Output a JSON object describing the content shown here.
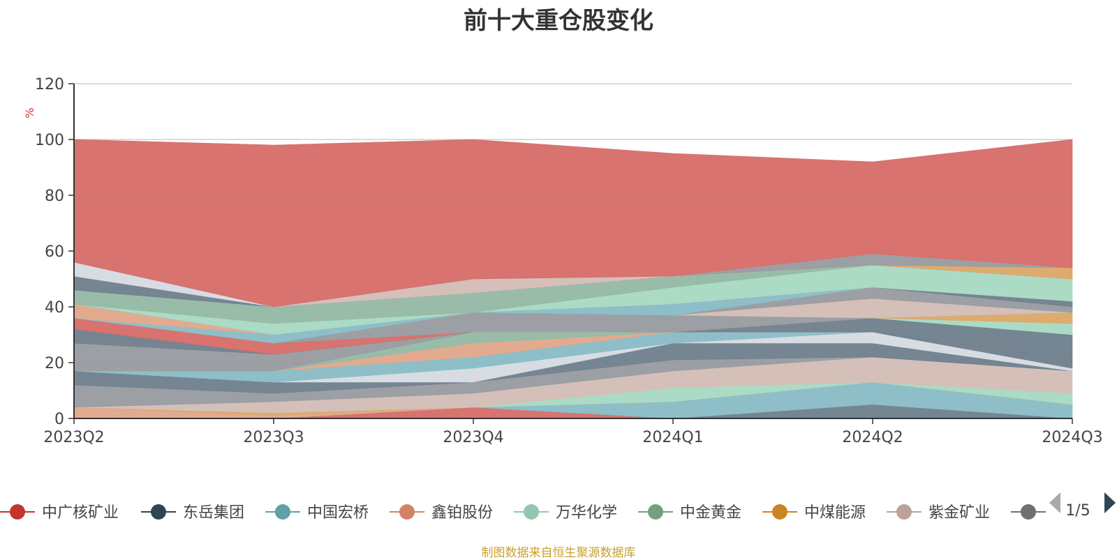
{
  "chart_data": {
    "type": "area",
    "title": "前十大重仓股变化",
    "ylabel": "%",
    "ylim": [
      0,
      120
    ],
    "yticks": [
      0,
      20,
      40,
      60,
      80,
      100,
      120
    ],
    "grid": true,
    "legend_position": "bottom",
    "categories": [
      "2023Q2",
      "2023Q3",
      "2023Q4",
      "2024Q1",
      "2024Q2",
      "2024Q3"
    ],
    "layers": [
      {
        "color": "#6e7e8c",
        "lower": [
          0,
          0,
          0,
          0,
          0,
          0
        ],
        "upper": [
          0,
          0,
          0,
          0,
          5,
          0
        ]
      },
      {
        "color": "#d66b68",
        "lower": [
          0,
          0,
          0,
          0,
          5,
          0
        ],
        "upper": [
          0,
          0,
          4,
          0,
          5,
          0
        ]
      },
      {
        "color": "#88bcc6",
        "lower": [
          0,
          0,
          4,
          0,
          5,
          0
        ],
        "upper": [
          0,
          0,
          4,
          6,
          13,
          5
        ]
      },
      {
        "color": "#e0a78a",
        "lower": [
          0,
          0,
          4,
          6,
          13,
          5
        ],
        "upper": [
          4,
          1,
          4,
          6,
          13,
          5
        ]
      },
      {
        "color": "#dca766",
        "lower": [
          4,
          1,
          4,
          6,
          13,
          5
        ],
        "upper": [
          4,
          2,
          4,
          6,
          13,
          5
        ]
      },
      {
        "color": "#a6d9c2",
        "lower": [
          4,
          2,
          4,
          6,
          13,
          5
        ],
        "upper": [
          4,
          2,
          4,
          11,
          13,
          9
        ]
      },
      {
        "color": "#d2bdb5",
        "lower": [
          4,
          2,
          4,
          11,
          13,
          9
        ],
        "upper": [
          4,
          6,
          9,
          17,
          22,
          17
        ]
      },
      {
        "color": "#979a9f",
        "lower": [
          4,
          6,
          9,
          17,
          22,
          17
        ],
        "upper": [
          12,
          9,
          13,
          21,
          22,
          17
        ]
      },
      {
        "color": "#6e7e8c",
        "lower": [
          12,
          9,
          13,
          21,
          22,
          17
        ],
        "upper": [
          17,
          13,
          13,
          27,
          27,
          17
        ]
      },
      {
        "color": "#d5dae2",
        "lower": [
          17,
          13,
          13,
          27,
          27,
          17
        ],
        "upper": [
          17,
          13,
          18,
          27,
          31,
          18
        ]
      },
      {
        "color": "#88bcc6",
        "lower": [
          17,
          13,
          18,
          27,
          31,
          18
        ],
        "upper": [
          17,
          17,
          22,
          31,
          31,
          18
        ]
      },
      {
        "color": "#e0a78a",
        "lower": [
          17,
          17,
          22,
          31,
          31,
          18
        ],
        "upper": [
          17,
          17,
          27,
          31,
          31,
          18
        ]
      },
      {
        "color": "#94b8a4",
        "lower": [
          17,
          17,
          27,
          31,
          31,
          18
        ],
        "upper": [
          17,
          17,
          31,
          31,
          31,
          18
        ]
      },
      {
        "color": "#979a9f",
        "lower": [
          17,
          17,
          31,
          31,
          31,
          18
        ],
        "upper": [
          27,
          23,
          31,
          31,
          31,
          18
        ]
      },
      {
        "color": "#6e7e8c",
        "lower": [
          27,
          23,
          31,
          31,
          31,
          18
        ],
        "upper": [
          32,
          23,
          31,
          31,
          31,
          21
        ]
      },
      {
        "color": "#d66b68",
        "lower": [
          32,
          23,
          31,
          31,
          31,
          21
        ],
        "upper": [
          36,
          27,
          31,
          31,
          31,
          21
        ]
      },
      {
        "color": "#6e7e8c",
        "lower": [
          36,
          27,
          31,
          31,
          31,
          21
        ],
        "upper": [
          36,
          27,
          31,
          31,
          36,
          30
        ]
      },
      {
        "color": "#a6d9c2",
        "lower": [
          36,
          27,
          31,
          31,
          36,
          30
        ],
        "upper": [
          36,
          27,
          31,
          31,
          36,
          34
        ]
      },
      {
        "color": "#dca766",
        "lower": [
          36,
          27,
          31,
          31,
          36,
          34
        ],
        "upper": [
          36,
          27,
          31,
          31,
          36,
          38
        ]
      },
      {
        "color": "#979a9f",
        "lower": [
          36,
          27,
          31,
          31,
          36,
          38
        ],
        "upper": [
          36,
          27,
          38,
          37,
          36,
          38
        ]
      },
      {
        "color": "#d2bdb5",
        "lower": [
          36,
          27,
          38,
          37,
          36,
          38
        ],
        "upper": [
          36,
          27,
          38,
          37,
          43,
          38
        ]
      },
      {
        "color": "#979a9f",
        "lower": [
          36,
          27,
          38,
          37,
          43,
          38
        ],
        "upper": [
          36,
          27,
          38,
          37,
          47,
          40
        ]
      },
      {
        "color": "#88bcc6",
        "lower": [
          36,
          27,
          38,
          37,
          47,
          40
        ],
        "upper": [
          36,
          30,
          38,
          41,
          47,
          40
        ]
      },
      {
        "color": "#e0a78a",
        "lower": [
          36,
          30,
          38,
          41,
          47,
          40
        ],
        "upper": [
          41,
          30,
          38,
          41,
          47,
          40
        ]
      },
      {
        "color": "#6e7e8c",
        "lower": [
          41,
          30,
          38,
          41,
          47,
          40
        ],
        "upper": [
          41,
          30,
          38,
          41,
          47,
          42
        ]
      },
      {
        "color": "#a6d9c2",
        "lower": [
          41,
          30,
          38,
          41,
          47,
          42
        ],
        "upper": [
          41,
          34,
          38,
          47,
          55,
          50
        ]
      },
      {
        "color": "#94b8a4",
        "lower": [
          41,
          34,
          38,
          47,
          55,
          50
        ],
        "upper": [
          46,
          40,
          45,
          51,
          55,
          50
        ]
      },
      {
        "color": "#6e7e8c",
        "lower": [
          46,
          40,
          45,
          51,
          55,
          50
        ],
        "upper": [
          51,
          40,
          45,
          51,
          55,
          50
        ]
      },
      {
        "color": "#d2bdb5",
        "lower": [
          51,
          40,
          45,
          51,
          55,
          50
        ],
        "upper": [
          51,
          40,
          50,
          51,
          55,
          50
        ]
      },
      {
        "color": "#dca766",
        "lower": [
          51,
          40,
          50,
          51,
          55,
          50
        ],
        "upper": [
          51,
          40,
          50,
          51,
          55,
          54
        ]
      },
      {
        "color": "#979a9f",
        "lower": [
          51,
          40,
          50,
          51,
          55,
          54
        ],
        "upper": [
          51,
          40,
          50,
          51,
          59,
          54
        ]
      },
      {
        "color": "#d5dae2",
        "lower": [
          51,
          40,
          50,
          51,
          59,
          54
        ],
        "upper": [
          56,
          40,
          50,
          51,
          59,
          54
        ]
      },
      {
        "color": "#d66b68",
        "lower": [
          56,
          40,
          50,
          51,
          59,
          54
        ],
        "upper": [
          100,
          98,
          100,
          95,
          92,
          100
        ]
      }
    ],
    "legend": [
      {
        "name": "中广核矿业",
        "color": "#c23531"
      },
      {
        "name": "东岳集团",
        "color": "#2f4554"
      },
      {
        "name": "中国宏桥",
        "color": "#61a0a8"
      },
      {
        "name": "鑫铂股份",
        "color": "#d48265"
      },
      {
        "name": "万华化学",
        "color": "#91c7ae"
      },
      {
        "name": "中金黄金",
        "color": "#749f83"
      },
      {
        "name": "中煤能源",
        "color": "#ca8622"
      },
      {
        "name": "紫金矿业",
        "color": "#bda29a"
      },
      {
        "name": "",
        "color": "#6e7074"
      }
    ],
    "legend_page": "1/5"
  },
  "footer_note": "制图数据来自恒生聚源数据库"
}
